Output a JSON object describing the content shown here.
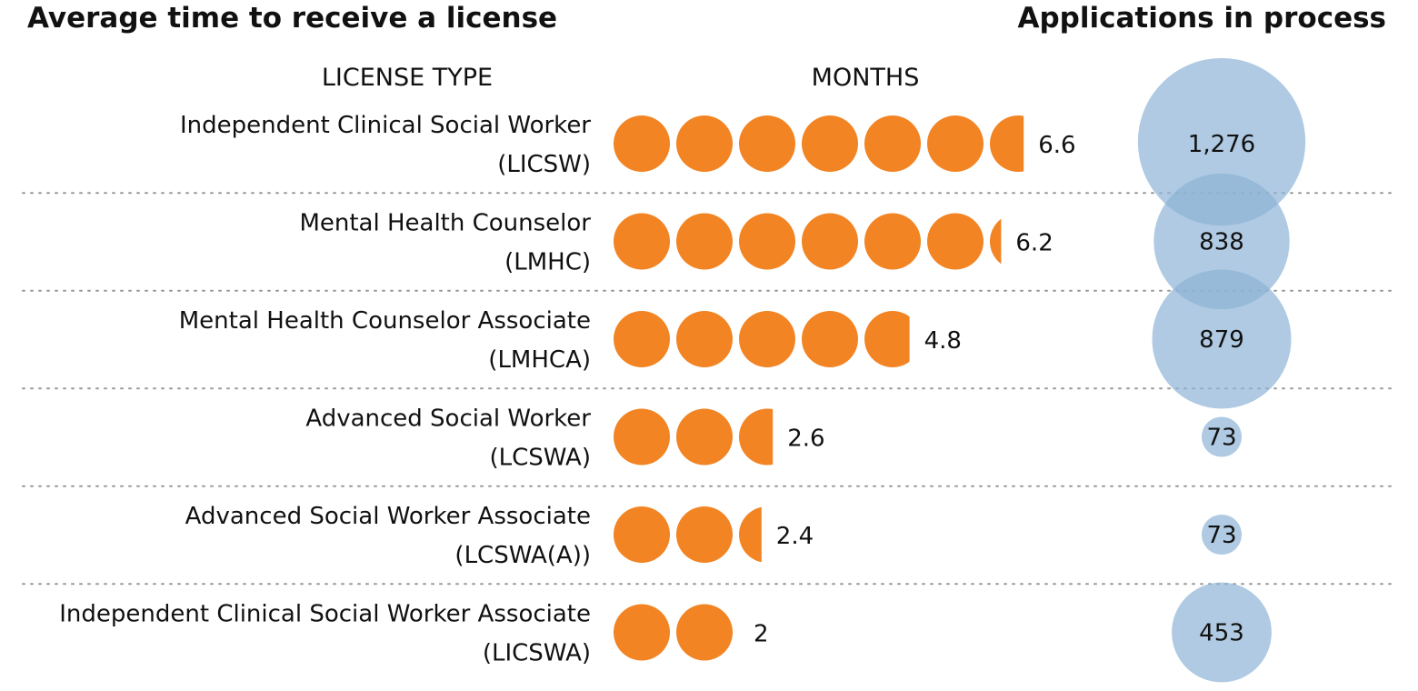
{
  "titles": {
    "left": "Average time to receive a license",
    "right": "Applications in process"
  },
  "column_headers": {
    "license_type": "LICENSE TYPE",
    "months": "MONTHS"
  },
  "colors": {
    "month_dot": "#f28423",
    "bubble": "#8db3d6",
    "divider": "#9a9a9a",
    "text": "#111111"
  },
  "chart_data": [
    {
      "type": "bar",
      "title": "Average time to receive a license",
      "xlabel": "MONTHS",
      "ylabel": "LICENSE TYPE",
      "categories": [
        "Independent Clinical Social Worker (LICSW)",
        "Mental Health Counselor (LMHC)",
        "Mental Health Counselor Associate (LMHCA)",
        "Advanced Social Worker (LCSWA)",
        "Advanced Social Worker Associate (LCSWA(A))",
        "Independent Clinical Social Worker Associate (LICSWA)"
      ],
      "category_lines": [
        [
          "Independent Clinical Social Worker",
          "(LICSW)"
        ],
        [
          "Mental Health Counselor",
          "(LMHC)"
        ],
        [
          "Mental Health Counselor Associate",
          "(LMHCA)"
        ],
        [
          "Advanced Social Worker",
          "(LCSWA)"
        ],
        [
          "Advanced Social Worker Associate",
          "(LCSWA(A))"
        ],
        [
          "Independent Clinical Social Worker Associate",
          "(LICSWA)"
        ]
      ],
      "values": [
        6.6,
        6.2,
        4.8,
        2.6,
        2.4,
        2
      ],
      "value_labels": [
        "6.6",
        "6.2",
        "4.8",
        "2.6",
        "2.4",
        "2"
      ],
      "encoding": "one circle per month, partial circle for fraction"
    },
    {
      "type": "scatter",
      "title": "Applications in process",
      "encoding": "bubble area proportional to value",
      "values": [
        1276,
        838,
        879,
        73,
        73,
        453
      ],
      "value_labels": [
        "1,276",
        "838",
        "879",
        "73",
        "73",
        "453"
      ]
    }
  ]
}
